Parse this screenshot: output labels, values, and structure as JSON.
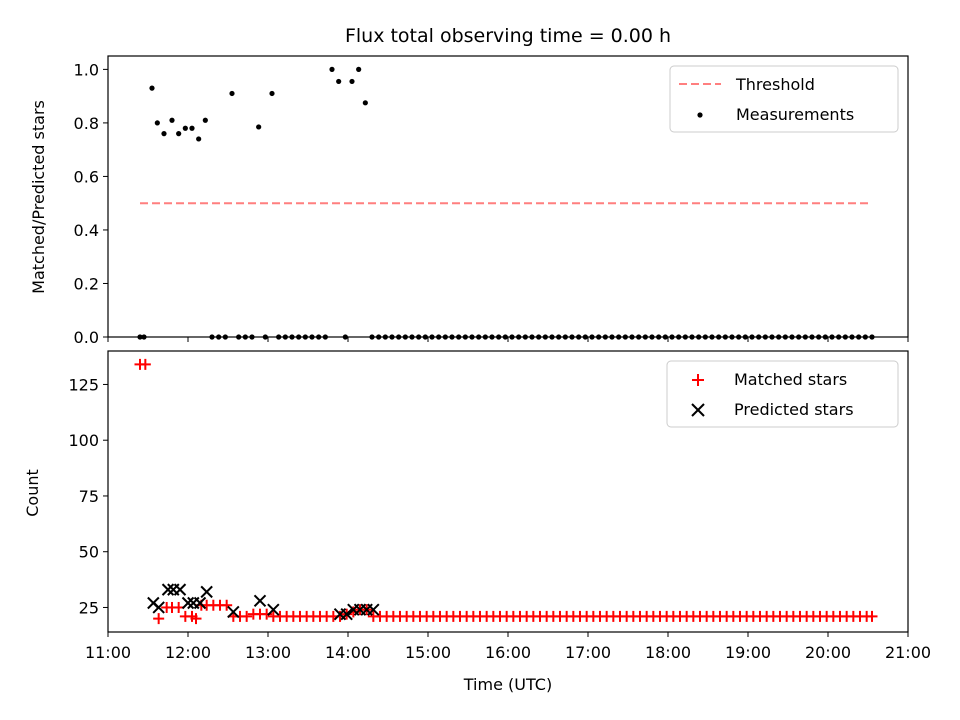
{
  "chart_data": [
    {
      "type": "scatter",
      "title": "Flux total observing time = 0.00 h",
      "xlabel": "",
      "ylabel": "Matched/Predicted stars",
      "xlim": [
        "11:00",
        "21:00"
      ],
      "ylim": [
        0,
        1.05
      ],
      "yticks": [
        "0.0",
        "0.2",
        "0.4",
        "0.6",
        "0.8",
        "1.0"
      ],
      "legend_position": "top-right",
      "series": [
        {
          "name": "Threshold",
          "kind": "dashed-line",
          "color": "#ff7f7f",
          "x": [
            "11:24",
            "20:33"
          ],
          "y": [
            0.5,
            0.5
          ]
        },
        {
          "name": "Measurements",
          "kind": "points",
          "color": "#000000",
          "x": [
            "11:24",
            "11:27",
            "11:33",
            "11:37",
            "11:42",
            "11:48",
            "11:53",
            "11:58",
            "12:03",
            "12:08",
            "12:13",
            "12:18",
            "12:23",
            "12:28",
            "12:33",
            "12:38",
            "12:43",
            "12:48",
            "12:53",
            "12:58",
            "13:03",
            "13:08",
            "13:13",
            "13:18",
            "13:23",
            "13:28",
            "13:33",
            "13:38",
            "13:43",
            "13:48",
            "13:53",
            "13:58",
            "14:03",
            "14:08",
            "14:13",
            "14:18",
            "14:23",
            "14:28",
            "14:33",
            "14:38",
            "14:43",
            "14:48",
            "14:53",
            "14:58",
            "15:03",
            "15:08",
            "15:13",
            "15:18",
            "15:23",
            "15:28",
            "15:33",
            "15:38",
            "15:43",
            "15:48",
            "15:53",
            "15:58",
            "16:03",
            "16:08",
            "16:13",
            "16:18",
            "16:23",
            "16:28",
            "16:33",
            "16:38",
            "16:43",
            "16:48",
            "16:53",
            "16:58",
            "17:03",
            "17:08",
            "17:13",
            "17:18",
            "17:23",
            "17:28",
            "17:33",
            "17:38",
            "17:43",
            "17:48",
            "17:53",
            "17:58",
            "18:03",
            "18:08",
            "18:13",
            "18:18",
            "18:23",
            "18:28",
            "18:33",
            "18:38",
            "18:43",
            "18:48",
            "18:53",
            "18:58",
            "19:03",
            "19:08",
            "19:13",
            "19:18",
            "19:23",
            "19:28",
            "19:33",
            "19:38",
            "19:43",
            "19:48",
            "19:53",
            "19:58",
            "20:03",
            "20:08",
            "20:13",
            "20:18",
            "20:23",
            "20:28",
            "20:33"
          ],
          "y": [
            0,
            0,
            0.93,
            0.8,
            0.76,
            0.81,
            0.76,
            0.78,
            0.78,
            0.74,
            0.81,
            0,
            0,
            0,
            0.91,
            0,
            0,
            0,
            0.785,
            0,
            0.91,
            0,
            0,
            0,
            0,
            0,
            0,
            0,
            0,
            1.0,
            0.955,
            0,
            0.955,
            1.0,
            0.875,
            0,
            0,
            0,
            0,
            0,
            0,
            0,
            0,
            0,
            0,
            0,
            0,
            0,
            0,
            0,
            0,
            0,
            0,
            0,
            0,
            0,
            0,
            0,
            0,
            0,
            0,
            0,
            0,
            0,
            0,
            0,
            0,
            0,
            0,
            0,
            0,
            0,
            0,
            0,
            0,
            0,
            0,
            0,
            0,
            0,
            0,
            0,
            0,
            0,
            0,
            0,
            0,
            0,
            0,
            0,
            0,
            0,
            0,
            0,
            0,
            0,
            0,
            0,
            0,
            0,
            0,
            0,
            0,
            0,
            0,
            0,
            0,
            0,
            0,
            0,
            0
          ]
        }
      ]
    },
    {
      "type": "scatter",
      "title": "",
      "xlabel": "Time (UTC)",
      "ylabel": "Count",
      "xlim": [
        "11:00",
        "21:00"
      ],
      "ylim": [
        14,
        140
      ],
      "xticks": [
        "11:00",
        "12:00",
        "13:00",
        "14:00",
        "15:00",
        "16:00",
        "17:00",
        "18:00",
        "19:00",
        "20:00",
        "21:00"
      ],
      "yticks": [
        "25",
        "50",
        "75",
        "100",
        "125"
      ],
      "legend_position": "top-right",
      "series": [
        {
          "name": "Matched stars",
          "kind": "plus",
          "color": "#ff0000",
          "x": [
            "11:24",
            "11:28",
            "11:38",
            "11:44",
            "11:48",
            "11:53",
            "11:58",
            "12:03",
            "12:06",
            "12:10",
            "12:14",
            "12:19",
            "12:24",
            "12:29",
            "12:34",
            "12:39",
            "12:44",
            "12:49",
            "12:54",
            "12:59",
            "13:04",
            "13:09",
            "13:14",
            "13:19",
            "13:24",
            "13:29",
            "13:34",
            "13:39",
            "13:44",
            "13:49",
            "13:54",
            "13:59",
            "14:04",
            "14:09",
            "14:14",
            "14:19",
            "14:24",
            "14:29",
            "14:34",
            "14:39",
            "14:44",
            "14:49",
            "14:54",
            "14:59",
            "15:04",
            "15:09",
            "15:14",
            "15:19",
            "15:24",
            "15:29",
            "15:34",
            "15:39",
            "15:44",
            "15:49",
            "15:54",
            "15:59",
            "16:04",
            "16:09",
            "16:14",
            "16:19",
            "16:24",
            "16:29",
            "16:34",
            "16:39",
            "16:44",
            "16:49",
            "16:54",
            "16:59",
            "17:04",
            "17:09",
            "17:14",
            "17:19",
            "17:24",
            "17:29",
            "17:34",
            "17:39",
            "17:44",
            "17:49",
            "17:54",
            "17:59",
            "18:04",
            "18:09",
            "18:14",
            "18:19",
            "18:24",
            "18:29",
            "18:34",
            "18:39",
            "18:44",
            "18:49",
            "18:54",
            "18:59",
            "19:04",
            "19:09",
            "19:14",
            "19:19",
            "19:24",
            "19:29",
            "19:34",
            "19:39",
            "19:44",
            "19:49",
            "19:54",
            "19:59",
            "20:04",
            "20:09",
            "20:14",
            "20:19",
            "20:24",
            "20:29",
            "20:33"
          ],
          "y": [
            134,
            134,
            20,
            25,
            25,
            25,
            21,
            21,
            20,
            26,
            26,
            26,
            26,
            26,
            21,
            21,
            21,
            22,
            22,
            22,
            21,
            21,
            21,
            21,
            21,
            21,
            21,
            21,
            21,
            21,
            21,
            22,
            23,
            24,
            24,
            21,
            21,
            21,
            21,
            21,
            21,
            21,
            21,
            21,
            21,
            21,
            21,
            21,
            21,
            21,
            21,
            21,
            21,
            21,
            21,
            21,
            21,
            21,
            21,
            21,
            21,
            21,
            21,
            21,
            21,
            21,
            21,
            21,
            21,
            21,
            21,
            21,
            21,
            21,
            21,
            21,
            21,
            21,
            21,
            21,
            21,
            21,
            21,
            21,
            21,
            21,
            21,
            21,
            21,
            21,
            21,
            21,
            21,
            21,
            21,
            21,
            21,
            21,
            21,
            21,
            21,
            21,
            21,
            21,
            21,
            21,
            21,
            21,
            21,
            21,
            21
          ]
        },
        {
          "name": "Predicted stars",
          "kind": "cross",
          "color": "#000000",
          "x": [
            "11:34",
            "11:38",
            "11:45",
            "11:49",
            "11:54",
            "12:00",
            "12:04",
            "12:09",
            "12:14",
            "12:34",
            "12:54",
            "13:04",
            "13:54",
            "13:59",
            "14:04",
            "14:09",
            "14:14",
            "14:19"
          ],
          "y": [
            27,
            25,
            33,
            33,
            33,
            27,
            27,
            27,
            32,
            23,
            28,
            24,
            22,
            22,
            24,
            24,
            24,
            24
          ]
        }
      ]
    }
  ]
}
